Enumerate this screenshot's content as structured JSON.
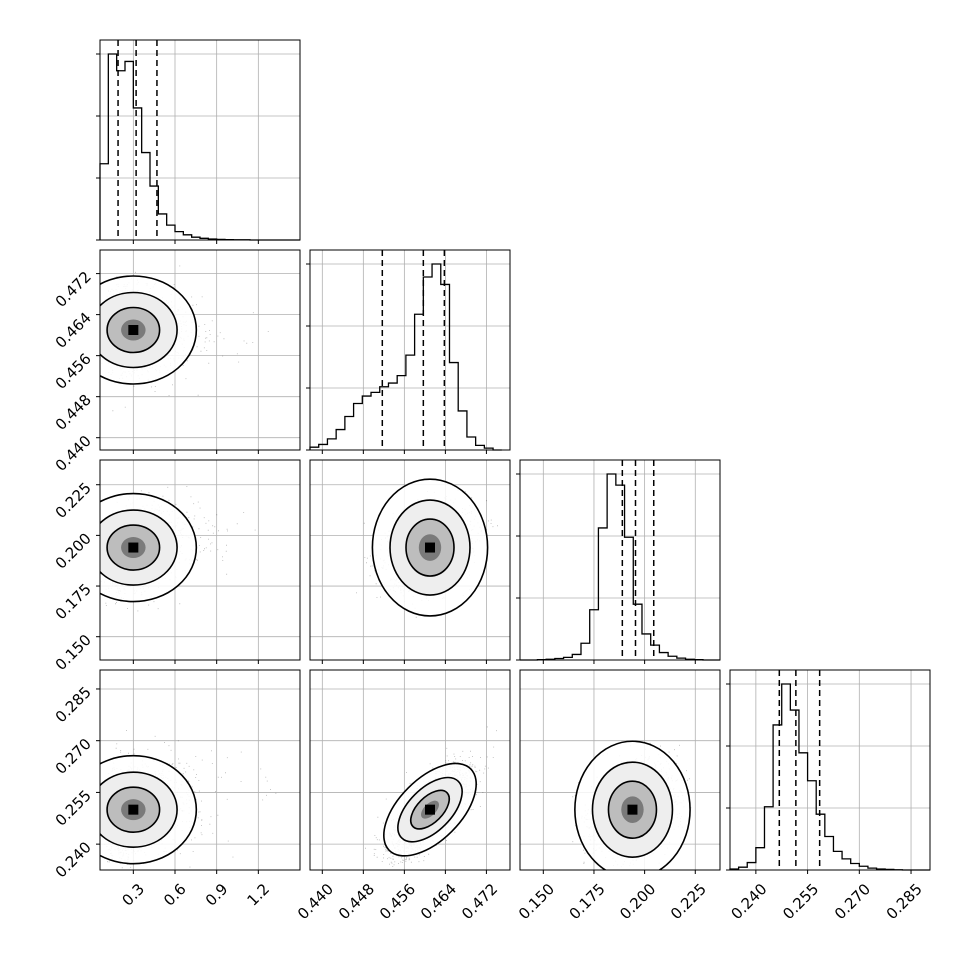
{
  "chart_data": {
    "type": "corner",
    "grid": true,
    "parameters": [
      {
        "ticks": [
          0.3,
          0.6,
          0.9,
          1.2
        ],
        "tick_labels": [
          "0.3",
          "0.6",
          "0.9",
          "1.2"
        ],
        "range": [
          0.06,
          1.5
        ],
        "quantiles": [
          0.19,
          0.32,
          0.47
        ],
        "hist_bins": [
          0.06,
          0.12,
          0.18,
          0.24,
          0.3,
          0.36,
          0.42,
          0.48,
          0.54,
          0.6,
          0.66,
          0.72,
          0.78,
          0.84,
          0.9,
          0.96,
          1.02,
          1.08,
          1.14,
          1.2,
          1.26,
          1.32,
          1.38,
          1.44,
          1.5
        ],
        "hist_counts": [
          0.41,
          1.0,
          0.91,
          0.96,
          0.71,
          0.47,
          0.29,
          0.14,
          0.08,
          0.045,
          0.028,
          0.015,
          0.009,
          0.005,
          0.003,
          0.002,
          0.001,
          0.001,
          0.0,
          0.0,
          0.0,
          0.0,
          0.0,
          0.0
        ],
        "peak": 0.3,
        "spread": 0.14
      },
      {
        "ticks": [
          0.44,
          0.448,
          0.456,
          0.464,
          0.472
        ],
        "tick_labels": [
          "0.440",
          "0.448",
          "0.456",
          "0.464",
          "0.472"
        ],
        "range": [
          0.4376,
          0.4766
        ],
        "quantiles": [
          0.4517,
          0.4597,
          0.4638
        ],
        "hist_bins": [
          0.4376,
          0.4393,
          0.441,
          0.4427,
          0.4444,
          0.4461,
          0.4478,
          0.4495,
          0.4512,
          0.4529,
          0.4546,
          0.4563,
          0.458,
          0.4597,
          0.4614,
          0.4631,
          0.4648,
          0.4665,
          0.4682,
          0.4699,
          0.4716,
          0.4733,
          0.475
        ],
        "hist_counts": [
          0.015,
          0.03,
          0.06,
          0.11,
          0.18,
          0.25,
          0.29,
          0.31,
          0.34,
          0.36,
          0.4,
          0.51,
          0.73,
          0.93,
          1.0,
          0.89,
          0.47,
          0.21,
          0.07,
          0.025,
          0.01,
          0.0
        ],
        "peak": 0.461,
        "spread": 0.004
      },
      {
        "ticks": [
          0.15,
          0.175,
          0.2,
          0.225
        ],
        "tick_labels": [
          "0.150",
          "0.175",
          "0.200",
          "0.225"
        ],
        "range": [
          0.1385,
          0.2372
        ],
        "quantiles": [
          0.189,
          0.1955,
          0.2045
        ],
        "hist_bins": [
          0.1385,
          0.1428,
          0.1471,
          0.1514,
          0.1557,
          0.16,
          0.1643,
          0.1686,
          0.1729,
          0.1772,
          0.1815,
          0.1858,
          0.1901,
          0.1944,
          0.1987,
          0.203,
          0.2073,
          0.2116,
          0.2159,
          0.2202,
          0.2245,
          0.2288,
          0.2331,
          0.2372
        ],
        "hist_counts": [
          0.0,
          0.0,
          0.002,
          0.004,
          0.008,
          0.014,
          0.03,
          0.09,
          0.27,
          0.71,
          1.0,
          0.94,
          0.66,
          0.3,
          0.14,
          0.08,
          0.04,
          0.02,
          0.01,
          0.004,
          0.002,
          0.0,
          0.0
        ],
        "peak": 0.194,
        "spread": 0.0095
      },
      {
        "ticks": [
          0.24,
          0.255,
          0.27,
          0.285
        ],
        "tick_labels": [
          "0.240",
          "0.255",
          "0.270",
          "0.285"
        ],
        "range": [
          0.2325,
          0.2905
        ],
        "quantiles": [
          0.2468,
          0.2516,
          0.2585
        ],
        "hist_bins": [
          0.2325,
          0.235,
          0.2375,
          0.24,
          0.2425,
          0.245,
          0.2475,
          0.25,
          0.2525,
          0.255,
          0.2575,
          0.26,
          0.2625,
          0.265,
          0.2675,
          0.27,
          0.2725,
          0.275,
          0.2775,
          0.28,
          0.2825,
          0.285,
          0.2875,
          0.2905
        ],
        "hist_counts": [
          0.005,
          0.015,
          0.04,
          0.12,
          0.34,
          0.78,
          1.0,
          0.86,
          0.63,
          0.48,
          0.3,
          0.18,
          0.1,
          0.06,
          0.035,
          0.02,
          0.01,
          0.005,
          0.003,
          0.001,
          0.0,
          0.0,
          0.0
        ],
        "peak": 0.25,
        "spread": 0.0065
      }
    ]
  }
}
